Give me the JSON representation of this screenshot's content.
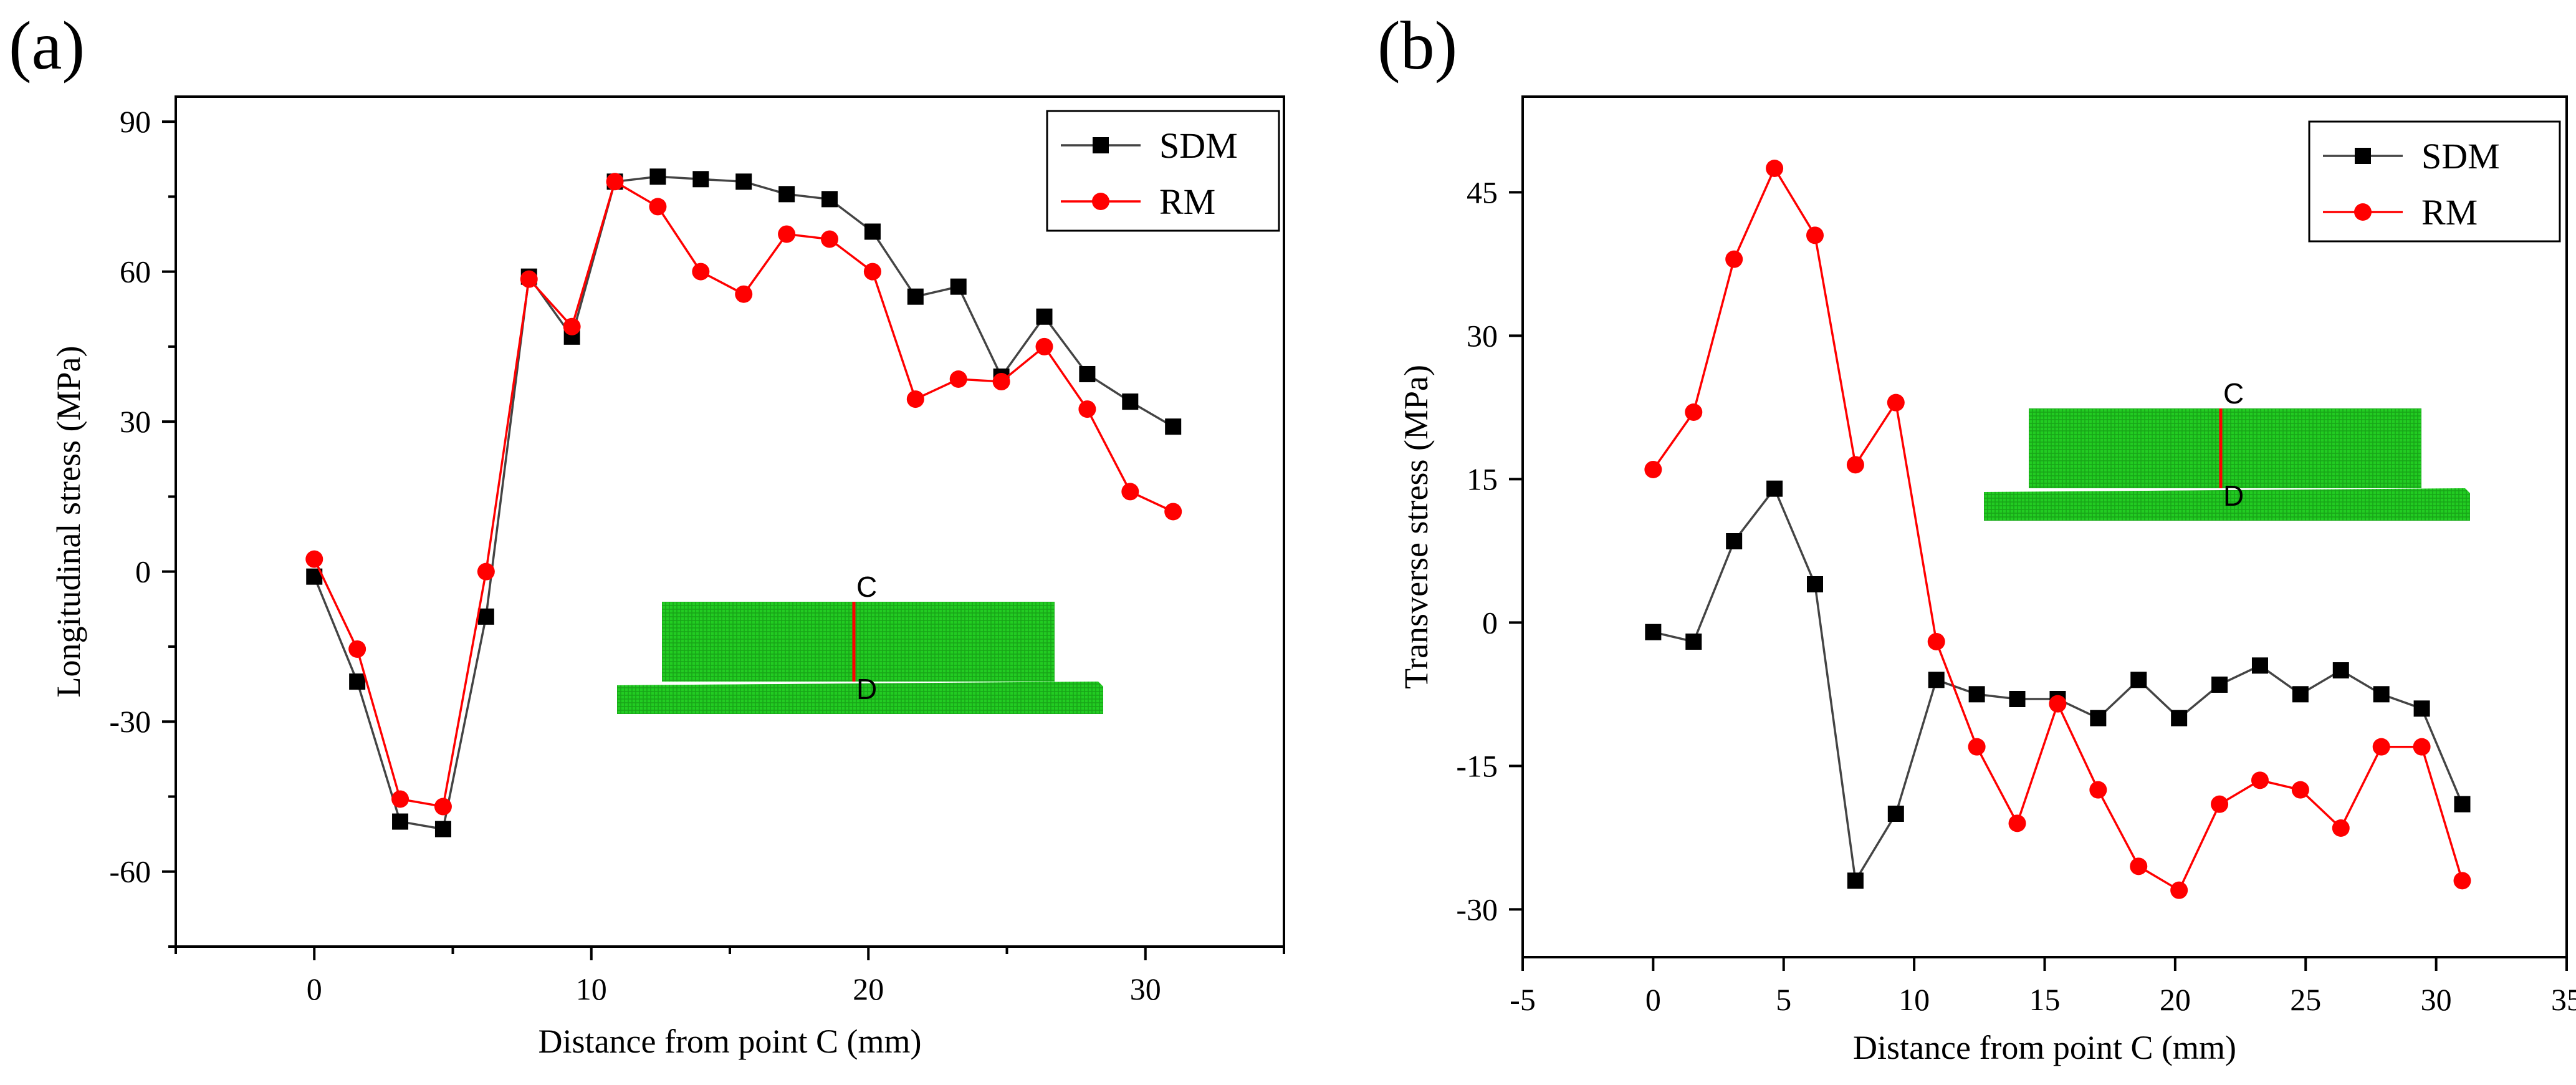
{
  "colors": {
    "sdm": "#000000",
    "rm": "#ff0000",
    "mesh_fill": "#22cc22",
    "mesh_line": "#128412",
    "cut_line": "#ff0000"
  },
  "chart_data": [
    {
      "type": "line",
      "panel_label": "(a)",
      "xlabel": "Distance from point C (mm)",
      "ylabel": "Longitudinal stress (MPa)",
      "xlim": [
        -5,
        35
      ],
      "ylim": [
        -75,
        95
      ],
      "xticks": [
        0,
        10,
        20,
        30
      ],
      "yticks": [
        -60,
        -30,
        0,
        30,
        60,
        90
      ],
      "legend": "top-right",
      "inset_labels": [
        "C",
        "D"
      ],
      "x": [
        0,
        1.55,
        3.1,
        4.65,
        6.2,
        7.75,
        9.3,
        10.85,
        12.4,
        13.95,
        15.5,
        17.05,
        18.6,
        20.15,
        21.7,
        23.25,
        24.8,
        26.35,
        27.9,
        29.45,
        31.0
      ],
      "series": [
        {
          "name": "SDM",
          "marker": "square",
          "values": [
            -1,
            -22,
            -50,
            -51.5,
            -9,
            59,
            47,
            78,
            79,
            78.5,
            78,
            75.5,
            74.5,
            68,
            55,
            57,
            39,
            51,
            39.5,
            34,
            29
          ]
        },
        {
          "name": "RM",
          "marker": "circle",
          "values": [
            2.5,
            -15.5,
            -45.5,
            -47,
            0,
            58.5,
            49,
            78,
            73,
            60,
            55.5,
            67.5,
            66.5,
            60,
            34.5,
            38.5,
            38,
            45,
            32.5,
            16,
            12
          ]
        }
      ]
    },
    {
      "type": "line",
      "panel_label": "(b)",
      "xlabel": "Distance from point C (mm)",
      "ylabel": "Transverse stress (MPa)",
      "xlim": [
        -5,
        35
      ],
      "ylim": [
        -35,
        55
      ],
      "xticks": [
        -5,
        0,
        5,
        10,
        15,
        20,
        25,
        30,
        35
      ],
      "yticks": [
        -30,
        -15,
        0,
        15,
        30,
        45
      ],
      "legend": "top-right",
      "inset_labels": [
        "C",
        "D"
      ],
      "x": [
        0,
        1.55,
        3.1,
        4.65,
        6.2,
        7.75,
        9.3,
        10.85,
        12.4,
        13.95,
        15.5,
        17.05,
        18.6,
        20.15,
        21.7,
        23.25,
        24.8,
        26.35,
        27.9,
        29.45,
        31.0
      ],
      "series": [
        {
          "name": "SDM",
          "marker": "square",
          "values": [
            -1,
            -2,
            8.5,
            14,
            4,
            -27,
            -20,
            -6,
            -7.5,
            -8,
            -8,
            -10,
            -6,
            -10,
            -6.5,
            -4.5,
            -7.5,
            -5,
            -7.5,
            -9,
            -19
          ]
        },
        {
          "name": "RM",
          "marker": "circle",
          "values": [
            16,
            22,
            38,
            47.5,
            40.5,
            16.5,
            23,
            -2,
            -13,
            -21,
            -8.5,
            -17.5,
            -25.5,
            -28,
            -19,
            -16.5,
            -17.5,
            -21.5,
            -13,
            -13,
            -27
          ]
        }
      ]
    }
  ]
}
